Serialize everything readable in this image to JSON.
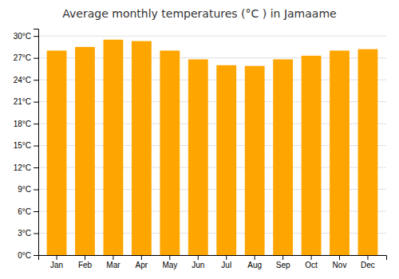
{
  "chart_data": {
    "type": "bar",
    "title": "Average monthly temperatures (°C ) in Jamaame",
    "categories": [
      "Jan",
      "Feb",
      "Mar",
      "Apr",
      "May",
      "Jun",
      "Jul",
      "Aug",
      "Sep",
      "Oct",
      "Nov",
      "Dec"
    ],
    "values": [
      28.0,
      28.5,
      29.5,
      29.3,
      28.0,
      26.8,
      26.0,
      25.9,
      26.8,
      27.3,
      28.0,
      28.2
    ],
    "color": "#FFA500",
    "ylim": [
      0,
      31
    ],
    "yticks": [
      {
        "value": 0,
        "label": "0°C"
      },
      {
        "value": 3,
        "label": "3°C"
      },
      {
        "value": 6,
        "label": "6°C"
      },
      {
        "value": 9,
        "label": "9°C"
      },
      {
        "value": 12,
        "label": "12°C"
      },
      {
        "value": 15,
        "label": "15°C"
      },
      {
        "value": 18,
        "label": "18°C"
      },
      {
        "value": 21,
        "label": "21°C"
      },
      {
        "value": 24,
        "label": "24°C"
      },
      {
        "value": 27,
        "label": "27°C"
      },
      {
        "value": 30,
        "label": "30°C"
      }
    ],
    "grid": true
  }
}
